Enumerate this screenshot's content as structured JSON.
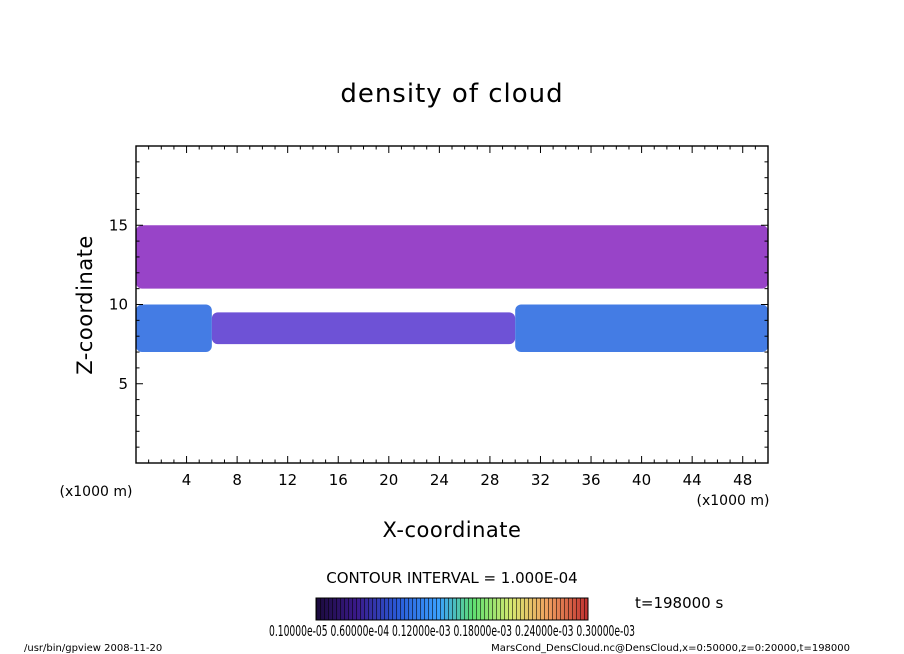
{
  "chart_data": {
    "type": "heatmap",
    "title": "density of cloud",
    "xlabel": "X-coordinate",
    "ylabel": "Z-coordinate",
    "x_unit": "(x1000 m)",
    "z_unit": "(x1000 m)",
    "xlim": [
      0,
      50
    ],
    "ylim": [
      0,
      20
    ],
    "x_ticks": [
      "4",
      "8",
      "12",
      "16",
      "20",
      "24",
      "28",
      "32",
      "36",
      "40",
      "44",
      "48"
    ],
    "x_tick_values": [
      4,
      8,
      12,
      16,
      20,
      24,
      28,
      32,
      36,
      40,
      44,
      48
    ],
    "y_ticks": [
      "5",
      "10",
      "15"
    ],
    "y_tick_values": [
      5,
      10,
      15
    ],
    "contour_interval_text": "CONTOUR INTERVAL = 1.000E-04",
    "time_text": "t=198000 s",
    "colorbar_labels_text": "0.10000e-05 0.60000e-04 0.12000e-03 0.18000e-03 0.24000e-03 0.30000e-03",
    "colorbar_levels": [
      1e-06,
      6e-05,
      0.00012,
      0.00018,
      0.00024,
      0.0003
    ],
    "colormap": [
      "#1a0a3a",
      "#3a1a8a",
      "#2a5ad8",
      "#3aa0ff",
      "#40d8a0",
      "#80e860",
      "#d8e870",
      "#f0c060",
      "#e07a50",
      "#c03030"
    ],
    "regions": [
      {
        "desc": "upper cloud layer",
        "x": [
          0,
          50
        ],
        "z": [
          11,
          15
        ],
        "level": "low",
        "color": "#8a2ac0"
      },
      {
        "desc": "lower cloud layer west",
        "x": [
          0,
          6
        ],
        "z": [
          7,
          10
        ],
        "level": "high",
        "color": "#2a6ae0"
      },
      {
        "desc": "lower cloud layer center",
        "x": [
          6,
          30
        ],
        "z": [
          7.5,
          9.5
        ],
        "level": "medium",
        "color": "#5a3ad0"
      },
      {
        "desc": "lower cloud layer east",
        "x": [
          30,
          50
        ],
        "z": [
          7,
          10
        ],
        "level": "high",
        "color": "#2a6ae0"
      }
    ],
    "grid": false
  },
  "footer": {
    "left": "/usr/bin/gpview   2008-11-20",
    "right": "MarsCond_DensCloud.nc@DensCloud,x=0:50000,z=0:20000,t=198000"
  }
}
